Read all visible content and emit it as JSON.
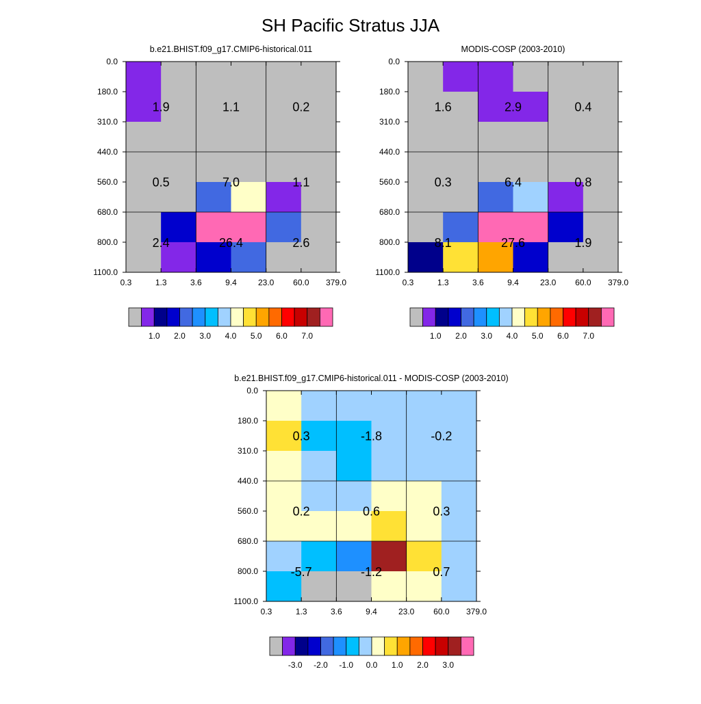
{
  "title": "SH Pacific Stratus JJA",
  "axes": {
    "x_ticks": [
      "0.3",
      "1.3",
      "3.6",
      "9.4",
      "23.0",
      "60.0",
      "379.0"
    ],
    "y_ticks": [
      "0.0",
      "180.0",
      "310.0",
      "440.0",
      "560.0",
      "680.0",
      "800.0",
      "1100.0"
    ]
  },
  "chart_data": [
    {
      "type": "heatmap",
      "title": "b.e21.BHIST.f09_g17.CMIP6-historical.011",
      "bin_values": [
        [
          1.9,
          1.1,
          0.2
        ],
        [
          0.5,
          7.0,
          1.1
        ],
        [
          2.4,
          26.4,
          2.6
        ]
      ],
      "cell_colors": [
        [
          "#8327e8",
          "#bebebe",
          "#bebebe",
          "#bebebe",
          "#bebebe",
          "#bebebe"
        ],
        [
          "#8327e8",
          "#bebebe",
          "#bebebe",
          "#bebebe",
          "#bebebe",
          "#bebebe"
        ],
        [
          "#bebebe",
          "#bebebe",
          "#bebebe",
          "#bebebe",
          "#bebebe",
          "#bebebe"
        ],
        [
          "#bebebe",
          "#bebebe",
          "#bebebe",
          "#bebebe",
          "#bebebe",
          "#bebebe"
        ],
        [
          "#bebebe",
          "#bebebe",
          "#4169e1",
          "#ffffc8",
          "#8327e8",
          "#bebebe"
        ],
        [
          "#bebebe",
          "#0000cd",
          "#ff69b4",
          "#ff69b4",
          "#4169e1",
          "#bebebe"
        ],
        [
          "#bebebe",
          "#8327e8",
          "#0000cd",
          "#4169e1",
          "#bebebe",
          "#bebebe"
        ]
      ],
      "colorbar": {
        "colors": [
          "#bebebe",
          "#8327e8",
          "#00008b",
          "#0000cd",
          "#4169e1",
          "#1e90ff",
          "#00bfff",
          "#a0d2ff",
          "#ffffc8",
          "#ffe135",
          "#ffa500",
          "#ff6a00",
          "#ff0000",
          "#c80000",
          "#a02020",
          "#ff69b4"
        ],
        "labels": [
          "1.0",
          "2.0",
          "3.0",
          "4.0",
          "5.0",
          "6.0",
          "7.0"
        ]
      }
    },
    {
      "type": "heatmap",
      "title": "MODIS-COSP (2003-2010)",
      "bin_values": [
        [
          1.6,
          2.9,
          0.4
        ],
        [
          0.3,
          6.4,
          0.8
        ],
        [
          8.1,
          27.6,
          1.9
        ]
      ],
      "cell_colors": [
        [
          "#bebebe",
          "#8327e8",
          "#8327e8",
          "#bebebe",
          "#bebebe",
          "#bebebe"
        ],
        [
          "#bebebe",
          "#bebebe",
          "#8327e8",
          "#8327e8",
          "#bebebe",
          "#bebebe"
        ],
        [
          "#bebebe",
          "#bebebe",
          "#bebebe",
          "#bebebe",
          "#bebebe",
          "#bebebe"
        ],
        [
          "#bebebe",
          "#bebebe",
          "#bebebe",
          "#bebebe",
          "#bebebe",
          "#bebebe"
        ],
        [
          "#bebebe",
          "#bebebe",
          "#4169e1",
          "#a0d2ff",
          "#8327e8",
          "#bebebe"
        ],
        [
          "#bebebe",
          "#4169e1",
          "#ff69b4",
          "#ff69b4",
          "#0000cd",
          "#bebebe"
        ],
        [
          "#00008b",
          "#ffe135",
          "#ffa500",
          "#0000cd",
          "#bebebe",
          "#bebebe"
        ]
      ],
      "colorbar": {
        "colors": [
          "#bebebe",
          "#8327e8",
          "#00008b",
          "#0000cd",
          "#4169e1",
          "#1e90ff",
          "#00bfff",
          "#a0d2ff",
          "#ffffc8",
          "#ffe135",
          "#ffa500",
          "#ff6a00",
          "#ff0000",
          "#c80000",
          "#a02020",
          "#ff69b4"
        ],
        "labels": [
          "1.0",
          "2.0",
          "3.0",
          "4.0",
          "5.0",
          "6.0",
          "7.0"
        ]
      }
    },
    {
      "type": "heatmap",
      "title": "b.e21.BHIST.f09_g17.CMIP6-historical.011 - MODIS-COSP (2003-2010)",
      "bin_values": [
        [
          0.3,
          -1.8,
          -0.2
        ],
        [
          0.2,
          0.6,
          0.3
        ],
        [
          -5.7,
          -1.2,
          0.7
        ]
      ],
      "cell_colors": [
        [
          "#ffffc8",
          "#a0d2ff",
          "#a0d2ff",
          "#a0d2ff",
          "#a0d2ff",
          "#a0d2ff"
        ],
        [
          "#ffe135",
          "#00bfff",
          "#00bfff",
          "#a0d2ff",
          "#a0d2ff",
          "#a0d2ff"
        ],
        [
          "#ffffc8",
          "#a0d2ff",
          "#00bfff",
          "#a0d2ff",
          "#a0d2ff",
          "#a0d2ff"
        ],
        [
          "#ffffc8",
          "#a0d2ff",
          "#a0d2ff",
          "#ffffc8",
          "#ffffc8",
          "#a0d2ff"
        ],
        [
          "#ffffc8",
          "#ffffc8",
          "#ffffc8",
          "#ffe135",
          "#ffffc8",
          "#a0d2ff"
        ],
        [
          "#a0d2ff",
          "#00bfff",
          "#1e90ff",
          "#a02020",
          "#ffe135",
          "#a0d2ff"
        ],
        [
          "#00bfff",
          "#bebebe",
          "#bebebe",
          "#ffffc8",
          "#ffffc8",
          "#a0d2ff"
        ]
      ],
      "colorbar": {
        "colors": [
          "#bebebe",
          "#8327e8",
          "#00008b",
          "#0000cd",
          "#4169e1",
          "#1e90ff",
          "#00bfff",
          "#a0d2ff",
          "#ffffc8",
          "#ffe135",
          "#ffa500",
          "#ff6a00",
          "#ff0000",
          "#c80000",
          "#a02020",
          "#ff69b4"
        ],
        "labels": [
          "-3.0",
          "-2.0",
          "-1.0",
          "0.0",
          "1.0",
          "2.0",
          "3.0"
        ]
      }
    }
  ]
}
